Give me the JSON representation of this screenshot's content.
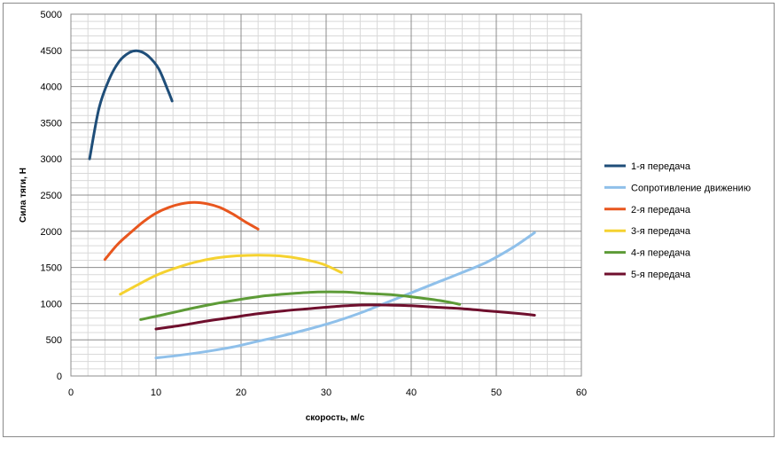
{
  "chart_data": {
    "type": "line",
    "title": "",
    "xlabel": "скорость, м/с",
    "ylabel": "Сила тяги, Н",
    "xlim": [
      0,
      60
    ],
    "ylim": [
      0,
      5000
    ],
    "x_ticks": [
      0,
      10,
      20,
      30,
      40,
      50,
      60
    ],
    "y_ticks": [
      0,
      500,
      1000,
      1500,
      2000,
      2500,
      3000,
      3500,
      4000,
      4500,
      5000
    ],
    "grid": true,
    "legend_position": "right",
    "series": [
      {
        "name": "1-я передача",
        "color": "#1f4e79",
        "points": [
          [
            2.2,
            3000
          ],
          [
            3.3,
            3700
          ],
          [
            4.5,
            4100
          ],
          [
            5.7,
            4350
          ],
          [
            6.9,
            4470
          ],
          [
            8.0,
            4490
          ],
          [
            9.1,
            4420
          ],
          [
            10.3,
            4250
          ],
          [
            11.4,
            3950
          ],
          [
            11.9,
            3800
          ]
        ]
      },
      {
        "name": "Сопротивление движению",
        "color": "#8fc0ea",
        "points": [
          [
            10,
            250
          ],
          [
            13,
            290
          ],
          [
            16,
            340
          ],
          [
            19,
            400
          ],
          [
            22,
            480
          ],
          [
            25,
            560
          ],
          [
            28,
            650
          ],
          [
            31,
            750
          ],
          [
            34,
            870
          ],
          [
            37,
            1010
          ],
          [
            40,
            1150
          ],
          [
            43,
            1290
          ],
          [
            46,
            1430
          ],
          [
            49,
            1580
          ],
          [
            52,
            1780
          ],
          [
            54.5,
            1980
          ]
        ]
      },
      {
        "name": "2-я передача",
        "color": "#e8561e",
        "points": [
          [
            4.0,
            1610
          ],
          [
            5.5,
            1820
          ],
          [
            7.0,
            1980
          ],
          [
            8.5,
            2130
          ],
          [
            10.0,
            2250
          ],
          [
            11.5,
            2330
          ],
          [
            13.0,
            2380
          ],
          [
            14.5,
            2400
          ],
          [
            16.0,
            2380
          ],
          [
            17.5,
            2330
          ],
          [
            19.0,
            2240
          ],
          [
            20.5,
            2130
          ],
          [
            22.0,
            2030
          ]
        ]
      },
      {
        "name": "3-я передача",
        "color": "#f5d230",
        "points": [
          [
            5.8,
            1130
          ],
          [
            8.0,
            1270
          ],
          [
            10.0,
            1390
          ],
          [
            12.0,
            1480
          ],
          [
            14.5,
            1570
          ],
          [
            17.0,
            1630
          ],
          [
            19.5,
            1660
          ],
          [
            22.0,
            1670
          ],
          [
            24.5,
            1660
          ],
          [
            27.0,
            1620
          ],
          [
            29.5,
            1550
          ],
          [
            31.8,
            1430
          ]
        ]
      },
      {
        "name": "4-я передача",
        "color": "#5d9b37",
        "points": [
          [
            8.2,
            780
          ],
          [
            11.0,
            850
          ],
          [
            14.0,
            930
          ],
          [
            17.0,
            1000
          ],
          [
            20.0,
            1060
          ],
          [
            23.0,
            1110
          ],
          [
            26.0,
            1140
          ],
          [
            29.0,
            1160
          ],
          [
            32.0,
            1160
          ],
          [
            35.0,
            1140
          ],
          [
            38.0,
            1120
          ],
          [
            41.0,
            1080
          ],
          [
            44.0,
            1030
          ],
          [
            45.7,
            990
          ]
        ]
      },
      {
        "name": "5-я передача",
        "color": "#6f0f2d",
        "points": [
          [
            10.0,
            650
          ],
          [
            13.0,
            700
          ],
          [
            16.0,
            760
          ],
          [
            19.0,
            810
          ],
          [
            22.0,
            860
          ],
          [
            25.0,
            900
          ],
          [
            28.0,
            930
          ],
          [
            31.0,
            960
          ],
          [
            34.0,
            980
          ],
          [
            37.0,
            980
          ],
          [
            40.0,
            970
          ],
          [
            43.0,
            950
          ],
          [
            46.0,
            930
          ],
          [
            49.0,
            900
          ],
          [
            52.0,
            870
          ],
          [
            54.5,
            840
          ]
        ]
      }
    ]
  }
}
